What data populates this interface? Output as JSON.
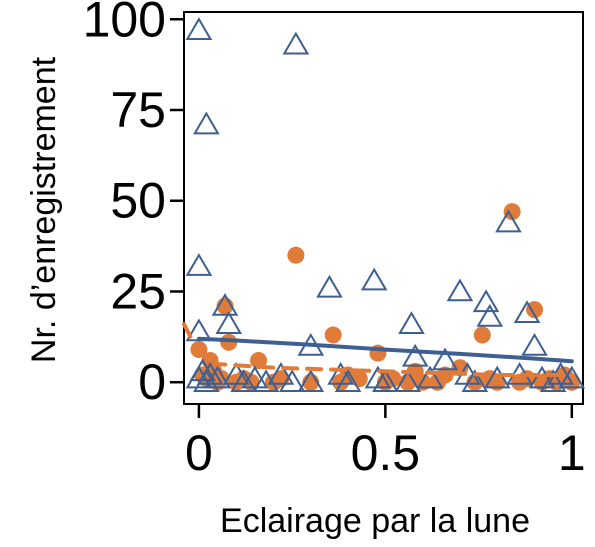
{
  "chart_data": {
    "type": "scatter",
    "xlabel": "Eclairage par la lune",
    "ylabel": "Nr. d’enregistrement",
    "xlim": [
      -0.04,
      1.03
    ],
    "ylim": [
      -6,
      102
    ],
    "x_ticks": [
      0,
      0.5,
      1
    ],
    "x_tick_labels": [
      "0",
      "0.5",
      "1"
    ],
    "y_ticks": [
      0,
      25,
      50,
      75,
      100
    ],
    "y_tick_labels": [
      "0",
      "25",
      "50",
      "75",
      "100"
    ],
    "grid": false,
    "legend": "none",
    "series": [
      {
        "marker": "circle-filled",
        "color": "#E07B39",
        "points": [
          [
            0.0,
            9
          ],
          [
            0.01,
            2
          ],
          [
            0.02,
            1
          ],
          [
            0.03,
            6
          ],
          [
            0.04,
            3
          ],
          [
            0.05,
            0
          ],
          [
            0.06,
            1
          ],
          [
            0.07,
            21
          ],
          [
            0.08,
            11
          ],
          [
            0.1,
            0
          ],
          [
            0.12,
            1
          ],
          [
            0.14,
            0
          ],
          [
            0.16,
            6
          ],
          [
            0.2,
            0
          ],
          [
            0.22,
            1
          ],
          [
            0.26,
            35
          ],
          [
            0.3,
            0
          ],
          [
            0.36,
            13
          ],
          [
            0.38,
            0
          ],
          [
            0.4,
            2
          ],
          [
            0.43,
            1
          ],
          [
            0.48,
            8
          ],
          [
            0.5,
            0
          ],
          [
            0.52,
            1
          ],
          [
            0.56,
            0
          ],
          [
            0.58,
            3
          ],
          [
            0.6,
            0
          ],
          [
            0.64,
            0
          ],
          [
            0.66,
            2
          ],
          [
            0.7,
            4
          ],
          [
            0.74,
            0
          ],
          [
            0.76,
            13
          ],
          [
            0.78,
            1
          ],
          [
            0.8,
            0
          ],
          [
            0.84,
            47
          ],
          [
            0.86,
            0
          ],
          [
            0.88,
            1
          ],
          [
            0.9,
            20
          ],
          [
            0.92,
            0
          ],
          [
            0.94,
            1
          ],
          [
            0.96,
            0
          ],
          [
            0.98,
            2
          ],
          [
            1.0,
            0
          ]
        ]
      },
      {
        "marker": "triangle-open",
        "color": "#3E5F92",
        "points": [
          [
            0.0,
            97
          ],
          [
            0.0,
            32
          ],
          [
            0.0,
            14
          ],
          [
            0.0,
            1
          ],
          [
            0.01,
            3
          ],
          [
            0.02,
            71
          ],
          [
            0.02,
            0
          ],
          [
            0.03,
            2
          ],
          [
            0.05,
            1
          ],
          [
            0.07,
            21
          ],
          [
            0.08,
            16
          ],
          [
            0.1,
            2
          ],
          [
            0.12,
            0
          ],
          [
            0.15,
            1
          ],
          [
            0.18,
            0
          ],
          [
            0.22,
            2
          ],
          [
            0.25,
            0
          ],
          [
            0.26,
            93
          ],
          [
            0.3,
            10
          ],
          [
            0.3,
            0
          ],
          [
            0.35,
            26
          ],
          [
            0.38,
            2
          ],
          [
            0.4,
            0
          ],
          [
            0.47,
            28
          ],
          [
            0.48,
            1
          ],
          [
            0.5,
            0
          ],
          [
            0.56,
            0
          ],
          [
            0.57,
            16
          ],
          [
            0.58,
            7
          ],
          [
            0.62,
            1
          ],
          [
            0.66,
            6
          ],
          [
            0.7,
            25
          ],
          [
            0.72,
            2
          ],
          [
            0.74,
            0
          ],
          [
            0.77,
            22
          ],
          [
            0.78,
            18
          ],
          [
            0.8,
            1
          ],
          [
            0.83,
            44
          ],
          [
            0.86,
            2
          ],
          [
            0.88,
            19
          ],
          [
            0.9,
            10
          ],
          [
            0.92,
            1
          ],
          [
            0.95,
            0
          ],
          [
            0.97,
            2
          ],
          [
            1.0,
            1
          ]
        ]
      }
    ],
    "trend_lines": [
      {
        "color": "#E07B39",
        "style": "dashed",
        "points": [
          [
            -0.04,
            16
          ],
          [
            0.0,
            8
          ],
          [
            0.05,
            5
          ],
          [
            0.2,
            4
          ],
          [
            0.5,
            3
          ],
          [
            0.8,
            2
          ],
          [
            1.0,
            2
          ]
        ]
      },
      {
        "color": "#3E5F92",
        "style": "solid",
        "points": [
          [
            0.0,
            12
          ],
          [
            0.1,
            11.5
          ],
          [
            0.3,
            10.3
          ],
          [
            0.5,
            9.0
          ],
          [
            0.7,
            7.8
          ],
          [
            0.9,
            6.5
          ],
          [
            1.0,
            5.8
          ]
        ]
      }
    ]
  }
}
